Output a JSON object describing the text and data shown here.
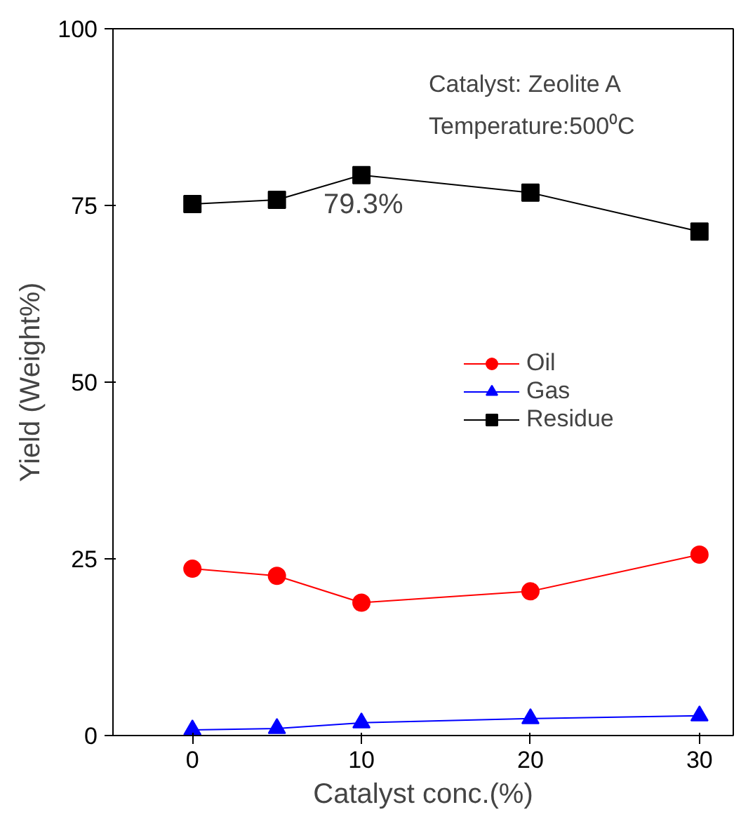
{
  "chart_data": {
    "type": "line",
    "xlabel": "Catalyst conc.(%)",
    "ylabel": "Yield (Weight%)",
    "x": [
      0,
      5,
      10,
      20,
      30
    ],
    "series": [
      {
        "name": "Oil",
        "color": "#ff0000",
        "marker": "circle",
        "values": [
          23.6,
          22.6,
          18.8,
          20.4,
          25.6
        ]
      },
      {
        "name": "Gas",
        "color": "#0000ff",
        "marker": "triangle",
        "values": [
          0.8,
          1.0,
          1.8,
          2.4,
          2.8
        ]
      },
      {
        "name": "Residue",
        "color": "#000000",
        "marker": "square",
        "values": [
          75.2,
          75.8,
          79.3,
          76.8,
          71.3
        ]
      }
    ],
    "xlim": [
      -4.7,
      32
    ],
    "ylim": [
      0,
      100
    ],
    "xticks": [
      0,
      10,
      20,
      30
    ],
    "yticks": [
      0,
      25,
      50,
      75,
      100
    ],
    "annotations": [
      "Catalyst: Zeolite A",
      "Temperature:500⁰C",
      {
        "text": "79.3%",
        "x": 10,
        "y": 79.3
      }
    ],
    "grid": false,
    "legend": "right",
    "line_style": "solid"
  }
}
